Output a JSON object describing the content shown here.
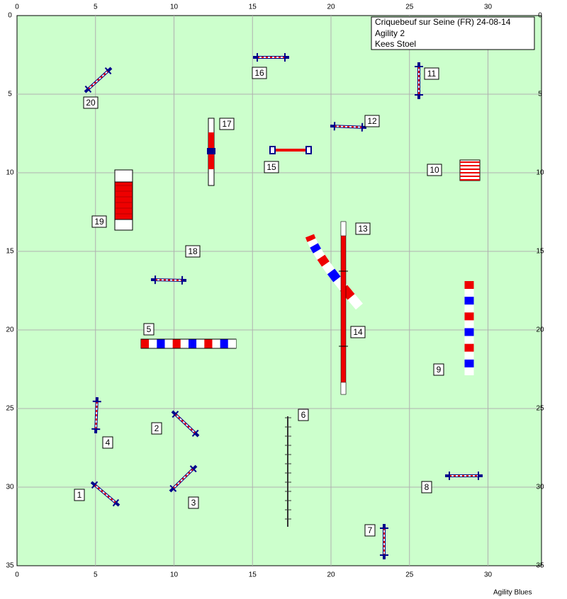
{
  "header": {
    "lines": [
      "Criquebeuf sur Seine (FR) 24-08-14",
      "Agility 2",
      "Kees Stoel"
    ]
  },
  "axes": {
    "x_ticks": [
      0,
      5,
      10,
      15,
      20,
      25,
      30
    ],
    "y_ticks": [
      0,
      5,
      10,
      15,
      20,
      25,
      30,
      35
    ]
  },
  "obstacles": [
    {
      "label": "1"
    },
    {
      "label": "2"
    },
    {
      "label": "3"
    },
    {
      "label": "4"
    },
    {
      "label": "5"
    },
    {
      "label": "6"
    },
    {
      "label": "7"
    },
    {
      "label": "8"
    },
    {
      "label": "9"
    },
    {
      "label": "10"
    },
    {
      "label": "11"
    },
    {
      "label": "12"
    },
    {
      "label": "13"
    },
    {
      "label": "14"
    },
    {
      "label": "15"
    },
    {
      "label": "16"
    },
    {
      "label": "17"
    },
    {
      "label": "18"
    },
    {
      "label": "19"
    },
    {
      "label": "20"
    }
  ],
  "footer": "Agility Blues"
}
